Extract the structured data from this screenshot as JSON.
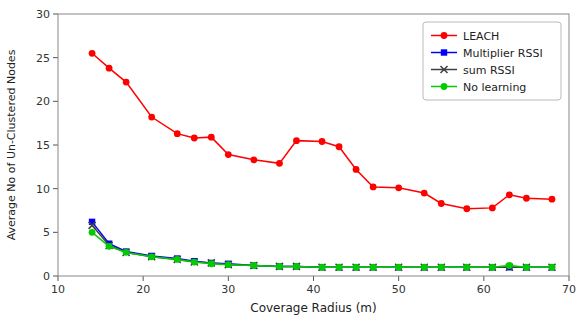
{
  "chart_data": {
    "type": "line",
    "xlabel": "Coverage Radius (m)",
    "ylabel": "Average No of Un-Clustered Nodes",
    "x": [
      14,
      16,
      18,
      21,
      24,
      26,
      28,
      30,
      33,
      36,
      38,
      41,
      43,
      45,
      47,
      50,
      53,
      55,
      58,
      61,
      63,
      65,
      68
    ],
    "series": [
      {
        "name": "LEACH",
        "color": "#ff0000",
        "marker": "circle",
        "values": [
          25.5,
          23.8,
          22.2,
          18.2,
          16.3,
          15.8,
          15.9,
          13.9,
          13.3,
          12.9,
          15.5,
          15.4,
          14.8,
          12.2,
          10.2,
          10.1,
          9.5,
          8.3,
          7.7,
          7.8,
          9.3,
          8.9,
          8.8
        ]
      },
      {
        "name": "Multiplier RSSI",
        "color": "#0000ff",
        "marker": "square",
        "values": [
          6.2,
          3.7,
          2.8,
          2.3,
          2.0,
          1.7,
          1.5,
          1.4,
          1.2,
          1.1,
          1.1,
          1.0,
          1.0,
          1.0,
          1.0,
          1.0,
          1.0,
          1.0,
          1.0,
          1.0,
          1.0,
          1.0,
          1.0
        ]
      },
      {
        "name": "sum RSSI",
        "color": "#404040",
        "marker": "x",
        "values": [
          5.8,
          3.5,
          2.7,
          2.2,
          1.9,
          1.6,
          1.5,
          1.3,
          1.2,
          1.1,
          1.1,
          1.0,
          1.0,
          1.0,
          1.0,
          1.0,
          1.0,
          1.0,
          1.0,
          1.0,
          1.0,
          1.0,
          1.0
        ]
      },
      {
        "name": "No learning",
        "color": "#00cc00",
        "marker": "circle",
        "values": [
          5.0,
          3.4,
          2.7,
          2.2,
          1.9,
          1.6,
          1.4,
          1.3,
          1.2,
          1.1,
          1.1,
          1.0,
          1.0,
          1.0,
          1.0,
          1.0,
          1.0,
          1.0,
          1.0,
          1.0,
          1.2,
          1.0,
          1.0
        ]
      }
    ],
    "xlim": [
      10,
      70
    ],
    "ylim": [
      0,
      30
    ],
    "xticks": [
      10,
      20,
      30,
      40,
      50,
      60,
      70
    ],
    "yticks": [
      0,
      5,
      10,
      15,
      20,
      25,
      30
    ],
    "grid": false,
    "legend": "upper right"
  }
}
